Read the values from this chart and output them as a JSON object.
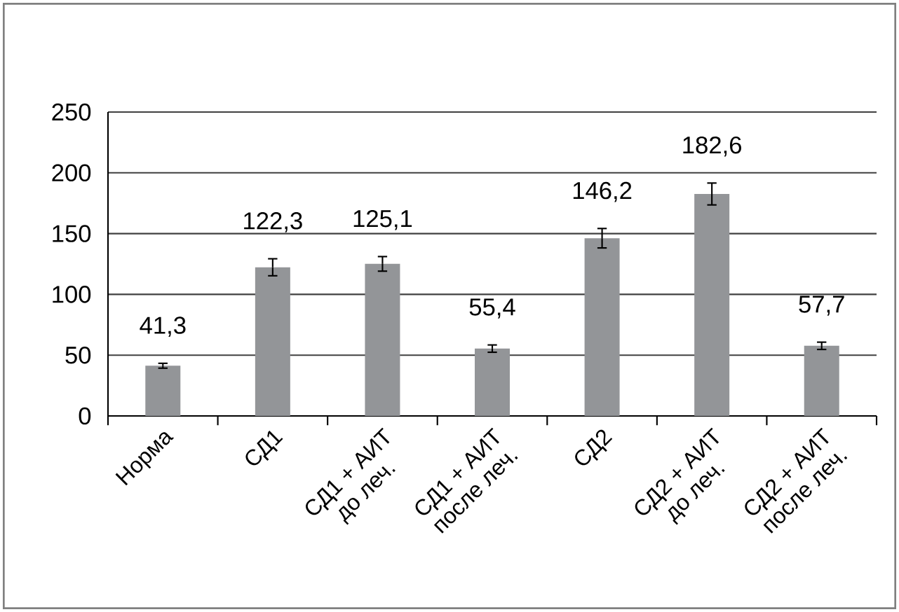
{
  "chart_data": {
    "type": "bar",
    "categories": [
      "Норма",
      "СД1",
      "СД1 + АИТ до леч.",
      "СД1 + АИТ после леч.",
      "СД2",
      "СД2 + АИТ до леч.",
      "СД2 + АИТ после леч."
    ],
    "values": [
      41.3,
      122.3,
      125.1,
      55.4,
      146.2,
      182.6,
      57.7
    ],
    "value_labels": [
      "41,3",
      "122,3",
      "125,1",
      "55,4",
      "146,2",
      "182,6",
      "57,7"
    ],
    "errors": [
      2,
      7,
      6,
      3,
      8,
      9,
      3
    ],
    "color": "#939598",
    "ylim": [
      0,
      250
    ],
    "yticks": [
      0,
      50,
      100,
      150,
      200,
      250
    ],
    "grid": "y"
  }
}
